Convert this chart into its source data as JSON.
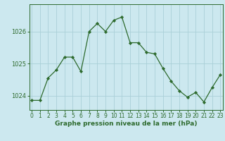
{
  "x": [
    0,
    1,
    2,
    3,
    4,
    5,
    6,
    7,
    8,
    9,
    10,
    11,
    12,
    13,
    14,
    15,
    16,
    17,
    18,
    19,
    20,
    21,
    22,
    23
  ],
  "y": [
    1023.85,
    1023.85,
    1024.55,
    1024.8,
    1025.2,
    1025.2,
    1024.75,
    1026.0,
    1026.25,
    1026.0,
    1026.35,
    1026.45,
    1025.65,
    1025.65,
    1025.35,
    1025.3,
    1024.85,
    1024.45,
    1024.15,
    1023.95,
    1024.1,
    1023.8,
    1024.25,
    1024.65
  ],
  "line_color": "#2d6a2d",
  "marker_color": "#2d6a2d",
  "bg_color": "#cce8ef",
  "grid_color": "#aad0d8",
  "axis_color": "#2d6a2d",
  "title": "Graphe pression niveau de la mer (hPa)",
  "yticks": [
    1024,
    1025,
    1026
  ],
  "ylim": [
    1023.55,
    1026.85
  ],
  "xlim": [
    -0.3,
    23.3
  ],
  "tick_label_fontsize": 5.5,
  "xlabel_fontsize": 6.5,
  "ylabel_fontsize": 6
}
